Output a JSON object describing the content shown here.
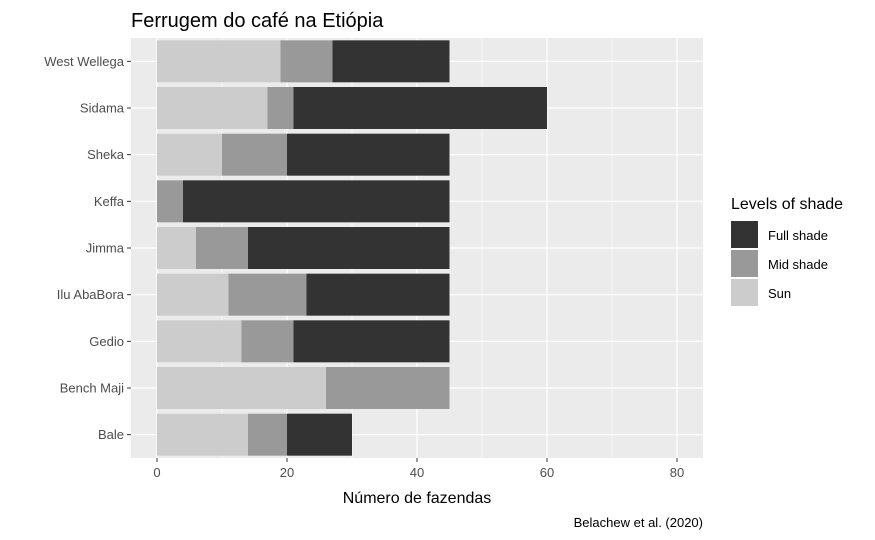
{
  "chart_data": {
    "type": "bar",
    "orientation": "horizontal",
    "stacked": true,
    "title": "Ferrugem do café na Etiópia",
    "xlabel": "Número de fazendas",
    "ylabel": "",
    "caption": "Belachew et al. (2020)",
    "categories": [
      "West Wellega",
      "Sidama",
      "Sheka",
      "Keffa",
      "Jimma",
      "Ilu AbaBora",
      "Gedio",
      "Bench Maji",
      "Bale"
    ],
    "series": [
      {
        "name": "Sun",
        "color": "#cccccc",
        "values": [
          19,
          17,
          10,
          0,
          6,
          11,
          13,
          26,
          14
        ]
      },
      {
        "name": "Mid shade",
        "color": "#999999",
        "values": [
          8,
          4,
          10,
          4,
          8,
          12,
          8,
          19,
          6
        ]
      },
      {
        "name": "Full shade",
        "color": "#333333",
        "values": [
          18,
          39,
          25,
          41,
          31,
          22,
          24,
          0,
          10
        ]
      }
    ],
    "xlim": [
      -4,
      84
    ],
    "x_ticks": [
      0,
      20,
      40,
      60,
      80
    ],
    "grid": true,
    "legend": {
      "title": "Levels of shade",
      "position": "right",
      "entries": [
        {
          "name": "Full shade",
          "color": "#333333"
        },
        {
          "name": "Mid shade",
          "color": "#999999"
        },
        {
          "name": "Sun",
          "color": "#cccccc"
        }
      ]
    }
  }
}
